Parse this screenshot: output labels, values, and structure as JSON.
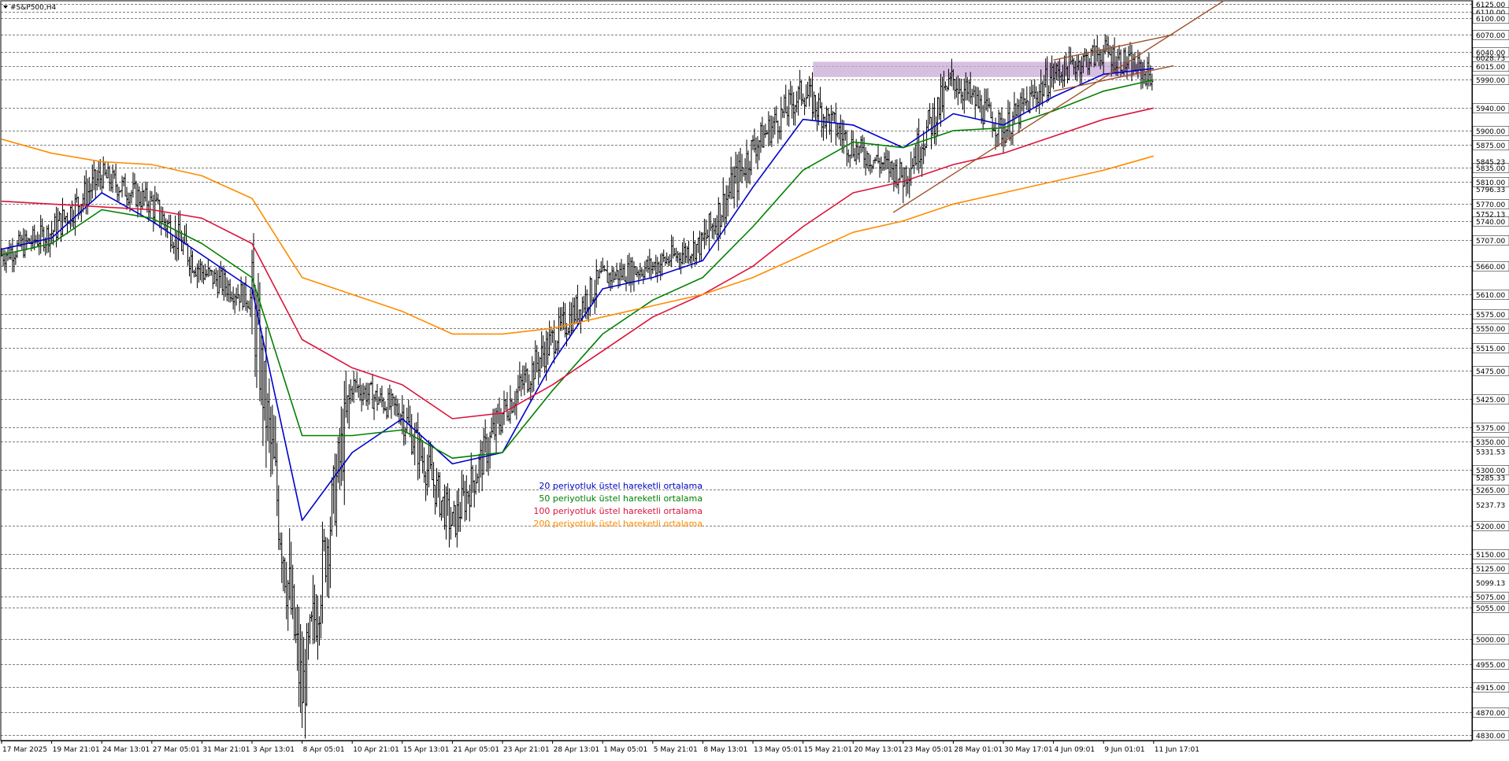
{
  "window": {
    "symbol_label": "#S&P500,H4"
  },
  "colors": {
    "bar": "#000000",
    "ema20": "#0000cc",
    "ema50": "#008000",
    "ema100": "#dc143c",
    "ema200": "#ff8c00",
    "trendline": "#a0522d",
    "zone": "#c9a9d6",
    "grid_dash": "#000000"
  },
  "legend": [
    {
      "text": "20 periyotluk üstel hareketli ortalama",
      "color": "#0000cc"
    },
    {
      "text": "50 periyotluk üstel hareketli ortalama",
      "color": "#008000"
    },
    {
      "text": "100 periyotluk üstel hareketli ortalama",
      "color": "#dc143c"
    },
    {
      "text": "200 periyotluk üstel hareketli ortalama",
      "color": "#ff8c00"
    }
  ],
  "chart_data": {
    "type": "line",
    "title": "#S&P500,H4",
    "x_labels": [
      "17 Mar 2025",
      "19 Mar 21:01",
      "24 Mar 13:01",
      "27 Mar 05:01",
      "31 Mar 21:01",
      "3 Apr 13:01",
      "8 Apr 05:01",
      "10 Apr 21:01",
      "15 Apr 13:01",
      "21 Apr 05:01",
      "23 Apr 21:01",
      "28 Apr 13:01",
      "1 May 05:01",
      "5 May 21:01",
      "8 May 13:01",
      "13 May 05:01",
      "15 May 21:01",
      "20 May 13:01",
      "23 May 05:01",
      "28 May 01:01",
      "30 May 17:01",
      "4 Jun 09:01",
      "9 Jun 01:01",
      "11 Jun 17:01"
    ],
    "ylim": [
      4820,
      6130
    ],
    "levels": [
      6125,
      6110,
      6100,
      6070,
      6040,
      6015,
      5990,
      5940,
      5900,
      5875,
      5835,
      5810,
      5770,
      5740,
      5707,
      5660,
      5610,
      5575,
      5550,
      5515,
      5475,
      5425,
      5375,
      5350,
      5300,
      5265,
      5200,
      5150,
      5125,
      5075,
      5055,
      5000,
      4955,
      4915,
      4870,
      4830
    ],
    "level_labels": [
      "6125.00",
      "6110.00",
      "6100.00",
      "6070.00",
      "6040.00",
      "6015.00",
      "5990.00",
      "5940.00",
      "5900.00",
      "5875.00",
      "5835.00",
      "5810.00",
      "5770.00",
      "5740.00",
      "5707.00",
      "5660.00",
      "5610.00",
      "5575.00",
      "5550.00",
      "5515.00",
      "5475.00",
      "5425.00",
      "5375.00",
      "5350.00",
      "5300.00",
      "5265.00",
      "5200.00",
      "5150.00",
      "5125.00",
      "5075.00",
      "5055.00",
      "5000.00",
      "4955.00",
      "4915.00",
      "4870.00",
      "4830.00"
    ],
    "plain_ticks": [
      6028.73,
      5845.23,
      5796.33,
      5752.13,
      5331.53,
      5285.33,
      5237.73,
      5099.13
    ],
    "plain_tick_labels": [
      "6028.73",
      "5845.23",
      "5796.33",
      "5752.13",
      "5331.53",
      "5285.33",
      "5237.73",
      "5099.13"
    ],
    "series": [
      {
        "key": "price",
        "x": [
          0,
          1,
          2,
          3,
          4,
          5,
          6,
          7,
          8,
          9,
          10,
          11,
          12,
          13,
          14,
          15,
          16,
          17,
          18,
          19,
          20,
          21,
          22,
          23
        ],
        "values": [
          5680,
          5720,
          5820,
          5770,
          5650,
          5600,
          4900,
          5450,
          5400,
          5200,
          5400,
          5530,
          5640,
          5660,
          5700,
          5870,
          5970,
          5870,
          5820,
          5990,
          5900,
          6000,
          6040,
          5995
        ]
      },
      {
        "key": "ema20",
        "x": [
          0,
          1,
          2,
          3,
          4,
          5,
          6,
          7,
          8,
          9,
          10,
          11,
          12,
          13,
          14,
          15,
          16,
          17,
          18,
          19,
          20,
          21,
          22,
          23
        ],
        "values": [
          5690,
          5710,
          5790,
          5740,
          5680,
          5620,
          5210,
          5330,
          5390,
          5310,
          5330,
          5490,
          5620,
          5640,
          5670,
          5800,
          5920,
          5910,
          5870,
          5930,
          5910,
          5960,
          6000,
          6010
        ]
      },
      {
        "key": "ema50",
        "x": [
          0,
          1,
          2,
          3,
          4,
          5,
          6,
          7,
          8,
          9,
          10,
          11,
          12,
          13,
          14,
          15,
          16,
          17,
          18,
          19,
          20,
          21,
          22,
          23
        ],
        "values": [
          5680,
          5700,
          5760,
          5745,
          5700,
          5640,
          5360,
          5360,
          5370,
          5320,
          5330,
          5440,
          5540,
          5600,
          5640,
          5730,
          5830,
          5880,
          5870,
          5900,
          5905,
          5935,
          5970,
          5990
        ]
      },
      {
        "key": "ema100",
        "x": [
          0,
          1,
          2,
          3,
          4,
          5,
          6,
          7,
          8,
          9,
          10,
          11,
          12,
          13,
          14,
          15,
          16,
          17,
          18,
          19,
          20,
          21,
          22,
          23
        ],
        "values": [
          5775,
          5770,
          5765,
          5760,
          5745,
          5700,
          5530,
          5480,
          5450,
          5390,
          5400,
          5450,
          5510,
          5570,
          5610,
          5660,
          5730,
          5790,
          5810,
          5840,
          5860,
          5890,
          5920,
          5940
        ]
      },
      {
        "key": "ema200",
        "x": [
          0,
          1,
          2,
          3,
          4,
          5,
          6,
          7,
          8,
          9,
          10,
          11,
          12,
          13,
          14,
          15,
          16,
          17,
          18,
          19,
          20,
          21,
          22,
          23
        ],
        "values": [
          5885,
          5860,
          5845,
          5840,
          5820,
          5780,
          5640,
          5610,
          5580,
          5540,
          5540,
          5550,
          5570,
          5590,
          5610,
          5640,
          5680,
          5720,
          5740,
          5770,
          5790,
          5810,
          5830,
          5855
        ]
      }
    ],
    "trendlines": [
      {
        "x": [
          17.8,
          24.4
        ],
        "values": [
          5755,
          6130
        ]
      },
      {
        "x": [
          21.0,
          23.4
        ],
        "values": [
          6025,
          6070
        ]
      },
      {
        "x": [
          21.0,
          23.4
        ],
        "values": [
          5970,
          6015
        ]
      }
    ],
    "zone": {
      "x": [
        16.2,
        22.8
      ],
      "values": [
        5995,
        6022
      ]
    },
    "grid": false,
    "legend_position": "center"
  }
}
